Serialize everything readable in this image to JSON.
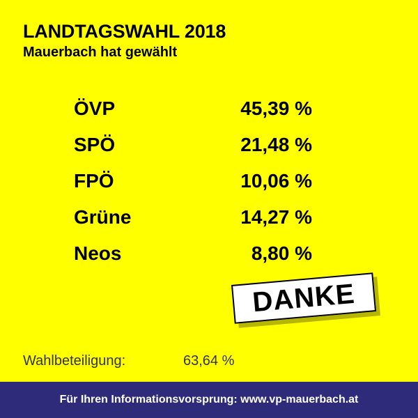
{
  "header": {
    "title": "LANDTAGSWAHL 2018",
    "subtitle": "Mauerbach hat gewählt"
  },
  "results": [
    {
      "party": "ÖVP",
      "percent": "45,39 %"
    },
    {
      "party": "SPÖ",
      "percent": "21,48 %"
    },
    {
      "party": "FPÖ",
      "percent": "10,06 %"
    },
    {
      "party": "Grüne",
      "percent": "14,27 %"
    },
    {
      "party": "Neos",
      "percent": "8,80 %"
    }
  ],
  "stamp": {
    "text": "DANKE"
  },
  "turnout": {
    "label": "Wahlbeteiligung:",
    "value": "63,64 %"
  },
  "footer": {
    "text": "Für Ihren Informationsvorsprung: www.vp-mauerbach.at"
  },
  "colors": {
    "background": "#FFFF00",
    "footer": "#2e2b7a",
    "text": "#000000"
  }
}
